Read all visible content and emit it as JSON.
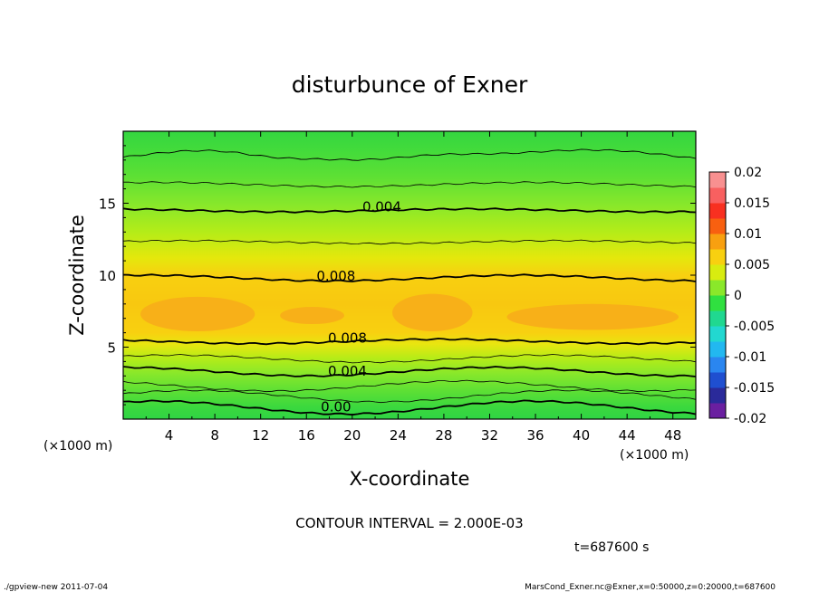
{
  "chart_data": {
    "type": "heatmap",
    "title": "disturbunce of Exner",
    "xlabel": "X-coordinate",
    "ylabel": "Z-coordinate",
    "x_unit": "(×1000 m)",
    "x_unit_right": "(×1000 m)",
    "xlim": [
      0,
      50
    ],
    "ylim": [
      0,
      20
    ],
    "x_ticks": [
      4,
      8,
      12,
      16,
      20,
      24,
      28,
      32,
      36,
      40,
      44,
      48
    ],
    "y_ticks": [
      5,
      10,
      15
    ],
    "colorbar": {
      "ticks": [
        "0.02",
        "0.015",
        "0.01",
        "0.005",
        "0",
        "-0.005",
        "-0.01",
        "-0.015",
        "-0.02"
      ],
      "range": [
        -0.02,
        0.02
      ],
      "colors": [
        "#6a1fa0",
        "#2a2a9a",
        "#1f4fd0",
        "#2a86f0",
        "#22b8f0",
        "#22d8d0",
        "#20d890",
        "#30e040",
        "#8ae82a",
        "#d8ec10",
        "#f8d010",
        "#f8a010",
        "#f86010",
        "#f83020",
        "#f86060",
        "#f89090"
      ]
    },
    "contour_labels": [
      {
        "text": "0.004",
        "x": 21,
        "z": 14.8
      },
      {
        "text": "0.008",
        "x": 17,
        "z": 10.0
      },
      {
        "text": "0.008",
        "x": 18,
        "z": 5.7
      },
      {
        "text": "0.004",
        "x": 18,
        "z": 3.4
      },
      {
        "text": "0.00",
        "x": 17,
        "z": 0.9
      }
    ],
    "contour_interval": "CONTOUR INTERVAL = 2.000E-03",
    "time": "t=687600 s"
  },
  "footer": {
    "left": "./gpview-new   2011-07-04",
    "right": "MarsCond_Exner.nc@Exner,x=0:50000,z=0:20000,t=687600"
  }
}
